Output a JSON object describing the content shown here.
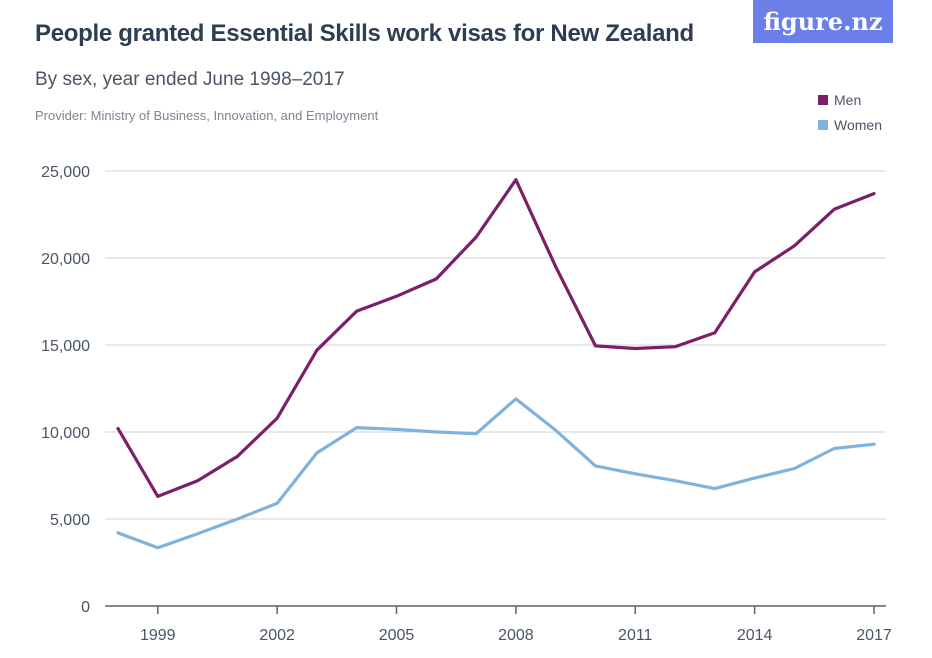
{
  "header": {
    "title": "People granted Essential Skills work visas for New Zealand",
    "subtitle": "By sex, year ended June 1998–2017",
    "provider": "Provider: Ministry of Business, Innovation, and Employment",
    "brand": "figure.nz"
  },
  "chart_data": {
    "type": "line",
    "x": [
      1998,
      1999,
      2000,
      2001,
      2002,
      2003,
      2004,
      2005,
      2006,
      2007,
      2008,
      2009,
      2010,
      2011,
      2012,
      2013,
      2014,
      2015,
      2016,
      2017
    ],
    "series": [
      {
        "name": "Men",
        "color": "#7b1f66",
        "values": [
          10200,
          6300,
          7200,
          8600,
          10800,
          14700,
          16950,
          17800,
          18800,
          21200,
          24500,
          19500,
          14950,
          14800,
          14900,
          15700,
          19200,
          20700,
          22800,
          23700
        ]
      },
      {
        "name": "Women",
        "color": "#7fb2dc",
        "values": [
          4200,
          3350,
          4150,
          5000,
          5900,
          8800,
          10250,
          10150,
          10000,
          9900,
          11900,
          10100,
          8050,
          7600,
          7200,
          6750,
          7350,
          7900,
          9050,
          9300
        ]
      }
    ],
    "xticks": [
      "1999",
      "2002",
      "2005",
      "2008",
      "2011",
      "2014",
      "2017"
    ],
    "yticks": [
      "0",
      "5,000",
      "10,000",
      "15,000",
      "20,000",
      "25,000"
    ],
    "ylim": [
      0,
      25000
    ],
    "xlim": [
      1998,
      2017
    ],
    "grid": true,
    "legend_position": "top-right"
  }
}
